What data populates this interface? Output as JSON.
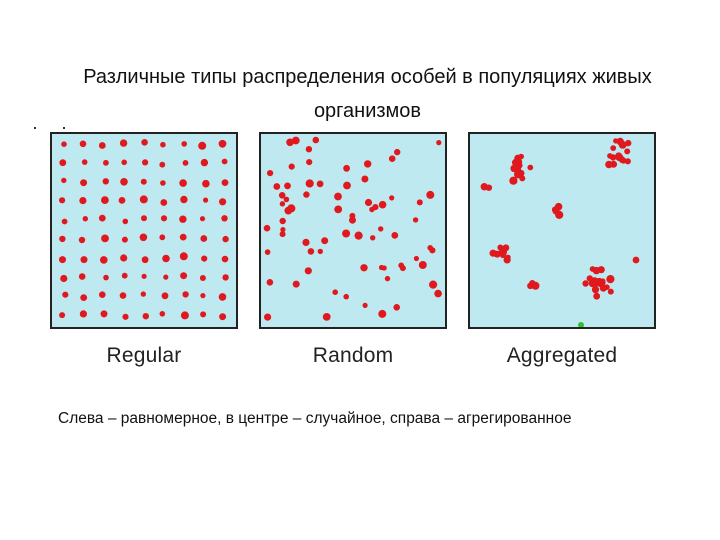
{
  "title": "Различные типы распределения особей в популяциях живых организмов",
  "colors": {
    "panel_background": "#bfe9f0",
    "organism": "#e0191f",
    "marker_green": "#2fbf2f",
    "border": "#222222"
  },
  "panels": [
    {
      "label": "Regular",
      "pattern": "regular"
    },
    {
      "label": "Random",
      "pattern": "random"
    },
    {
      "label": "Aggregated",
      "pattern": "aggregated"
    }
  ],
  "caption": "Слева – равномерное, в центре – случайное,  справа – агрегированное"
}
